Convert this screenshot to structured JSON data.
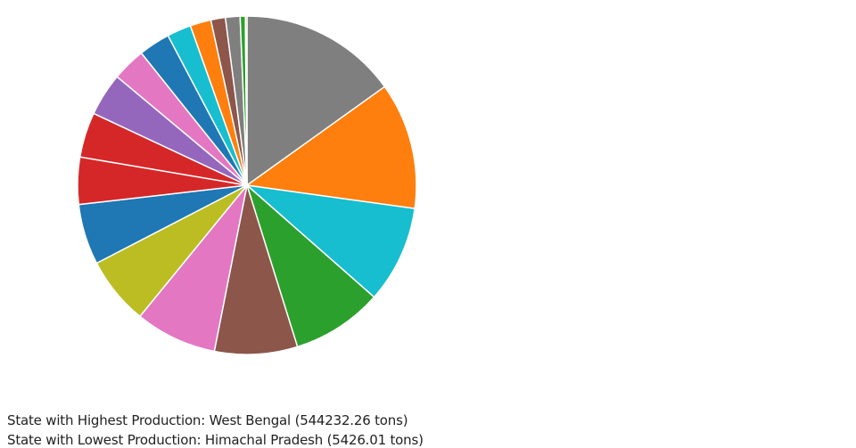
{
  "chart_data": {
    "type": "pie",
    "direction": "clockwise",
    "start": "top",
    "unit": "tons",
    "values": [
      544232.26,
      436000,
      335000,
      313000,
      285000,
      281000,
      234000,
      209000,
      162000,
      155000,
      148000,
      115000,
      108000,
      83000,
      72000,
      50000,
      50000,
      18000,
      5426.01
    ],
    "colors": [
      "#7f7f7f",
      "#ff7f0e",
      "#17becf",
      "#2ca02c",
      "#8c564b",
      "#e377c2",
      "#bcbd22",
      "#1f77b4",
      "#d62728",
      "#d62728",
      "#9467bd",
      "#e377c2",
      "#1f77b4",
      "#17becf",
      "#ff7f0e",
      "#8c564b",
      "#7f7f7f",
      "#2ca02c",
      "#bcbd22"
    ],
    "legend": "none"
  },
  "summary": {
    "highest": "State with Highest Production: West Bengal (544232.26 tons)",
    "lowest": "State with Lowest Production: Himachal Pradesh (5426.01 tons)"
  }
}
